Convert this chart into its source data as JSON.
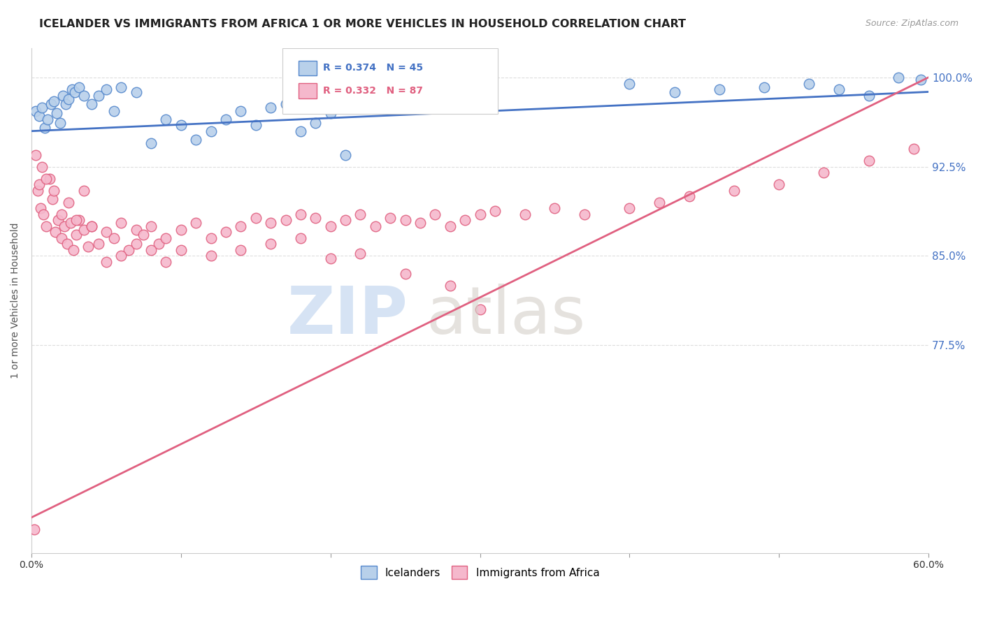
{
  "title": "ICELANDER VS IMMIGRANTS FROM AFRICA 1 OR MORE VEHICLES IN HOUSEHOLD CORRELATION CHART",
  "source": "Source: ZipAtlas.com",
  "ylabel": "1 or more Vehicles in Household",
  "xmin": 0.0,
  "xmax": 60.0,
  "ymin": 60.0,
  "ymax": 102.5,
  "icelander_color": "#b8d0ea",
  "africa_color": "#f5b8cc",
  "icelander_edge_color": "#5588cc",
  "africa_edge_color": "#e06080",
  "line_icelander_color": "#4472c4",
  "line_africa_color": "#e06080",
  "background_color": "#ffffff",
  "grid_color": "#dddddd",
  "ytick_vals": [
    77.5,
    85.0,
    92.5,
    100.0
  ],
  "icelander_x": [
    0.3,
    0.5,
    0.7,
    0.9,
    1.1,
    1.3,
    1.5,
    1.7,
    1.9,
    2.1,
    2.3,
    2.5,
    2.7,
    2.9,
    3.2,
    3.5,
    4.0,
    4.5,
    5.0,
    5.5,
    6.0,
    7.0,
    8.0,
    9.0,
    10.0,
    11.0,
    12.0,
    13.0,
    14.0,
    15.0,
    16.0,
    17.0,
    18.0,
    19.0,
    20.0,
    21.0,
    40.0,
    43.0,
    46.0,
    49.0,
    52.0,
    54.0,
    56.0,
    58.0,
    59.5
  ],
  "icelander_y": [
    97.2,
    96.8,
    97.5,
    95.8,
    96.5,
    97.8,
    98.0,
    97.0,
    96.2,
    98.5,
    97.8,
    98.2,
    99.0,
    98.8,
    99.2,
    98.5,
    97.8,
    98.5,
    99.0,
    97.2,
    99.2,
    98.8,
    94.5,
    96.5,
    96.0,
    94.8,
    95.5,
    96.5,
    97.2,
    96.0,
    97.5,
    97.8,
    95.5,
    96.2,
    97.0,
    93.5,
    99.5,
    98.8,
    99.0,
    99.2,
    99.5,
    99.0,
    98.5,
    100.0,
    99.8
  ],
  "africa_x": [
    0.2,
    0.4,
    0.6,
    0.8,
    1.0,
    1.2,
    1.4,
    1.6,
    1.8,
    2.0,
    2.2,
    2.4,
    2.6,
    2.8,
    3.0,
    3.2,
    3.5,
    3.8,
    4.0,
    4.5,
    5.0,
    5.5,
    6.0,
    6.5,
    7.0,
    7.5,
    8.0,
    8.5,
    9.0,
    10.0,
    11.0,
    12.0,
    13.0,
    14.0,
    15.0,
    16.0,
    17.0,
    18.0,
    19.0,
    20.0,
    21.0,
    22.0,
    23.0,
    24.0,
    25.0,
    26.0,
    27.0,
    28.0,
    29.0,
    30.0,
    31.0,
    33.0,
    35.0,
    37.0,
    40.0,
    42.0,
    44.0,
    47.0,
    50.0,
    53.0,
    56.0,
    59.0,
    0.3,
    0.5,
    0.7,
    1.0,
    1.5,
    2.0,
    2.5,
    3.0,
    3.5,
    4.0,
    5.0,
    6.0,
    7.0,
    8.0,
    9.0,
    10.0,
    12.0,
    14.0,
    16.0,
    18.0,
    20.0,
    22.0,
    25.0,
    28.0,
    30.0
  ],
  "africa_y": [
    62.0,
    90.5,
    89.0,
    88.5,
    87.5,
    91.5,
    89.8,
    87.0,
    88.0,
    86.5,
    87.5,
    86.0,
    87.8,
    85.5,
    86.8,
    88.0,
    87.2,
    85.8,
    87.5,
    86.0,
    87.0,
    86.5,
    87.8,
    85.5,
    87.2,
    86.8,
    87.5,
    86.0,
    86.5,
    87.2,
    87.8,
    86.5,
    87.0,
    87.5,
    88.2,
    87.8,
    88.0,
    88.5,
    88.2,
    87.5,
    88.0,
    88.5,
    87.5,
    88.2,
    88.0,
    87.8,
    88.5,
    87.5,
    88.0,
    88.5,
    88.8,
    88.5,
    89.0,
    88.5,
    89.0,
    89.5,
    90.0,
    90.5,
    91.0,
    92.0,
    93.0,
    94.0,
    93.5,
    91.0,
    92.5,
    91.5,
    90.5,
    88.5,
    89.5,
    88.0,
    90.5,
    87.5,
    84.5,
    85.0,
    86.0,
    85.5,
    84.5,
    85.5,
    85.0,
    85.5,
    86.0,
    86.5,
    84.8,
    85.2,
    83.5,
    82.5,
    80.5
  ],
  "watermark_zip_color": "#c5d8f0",
  "watermark_atlas_color": "#d4cfc8"
}
